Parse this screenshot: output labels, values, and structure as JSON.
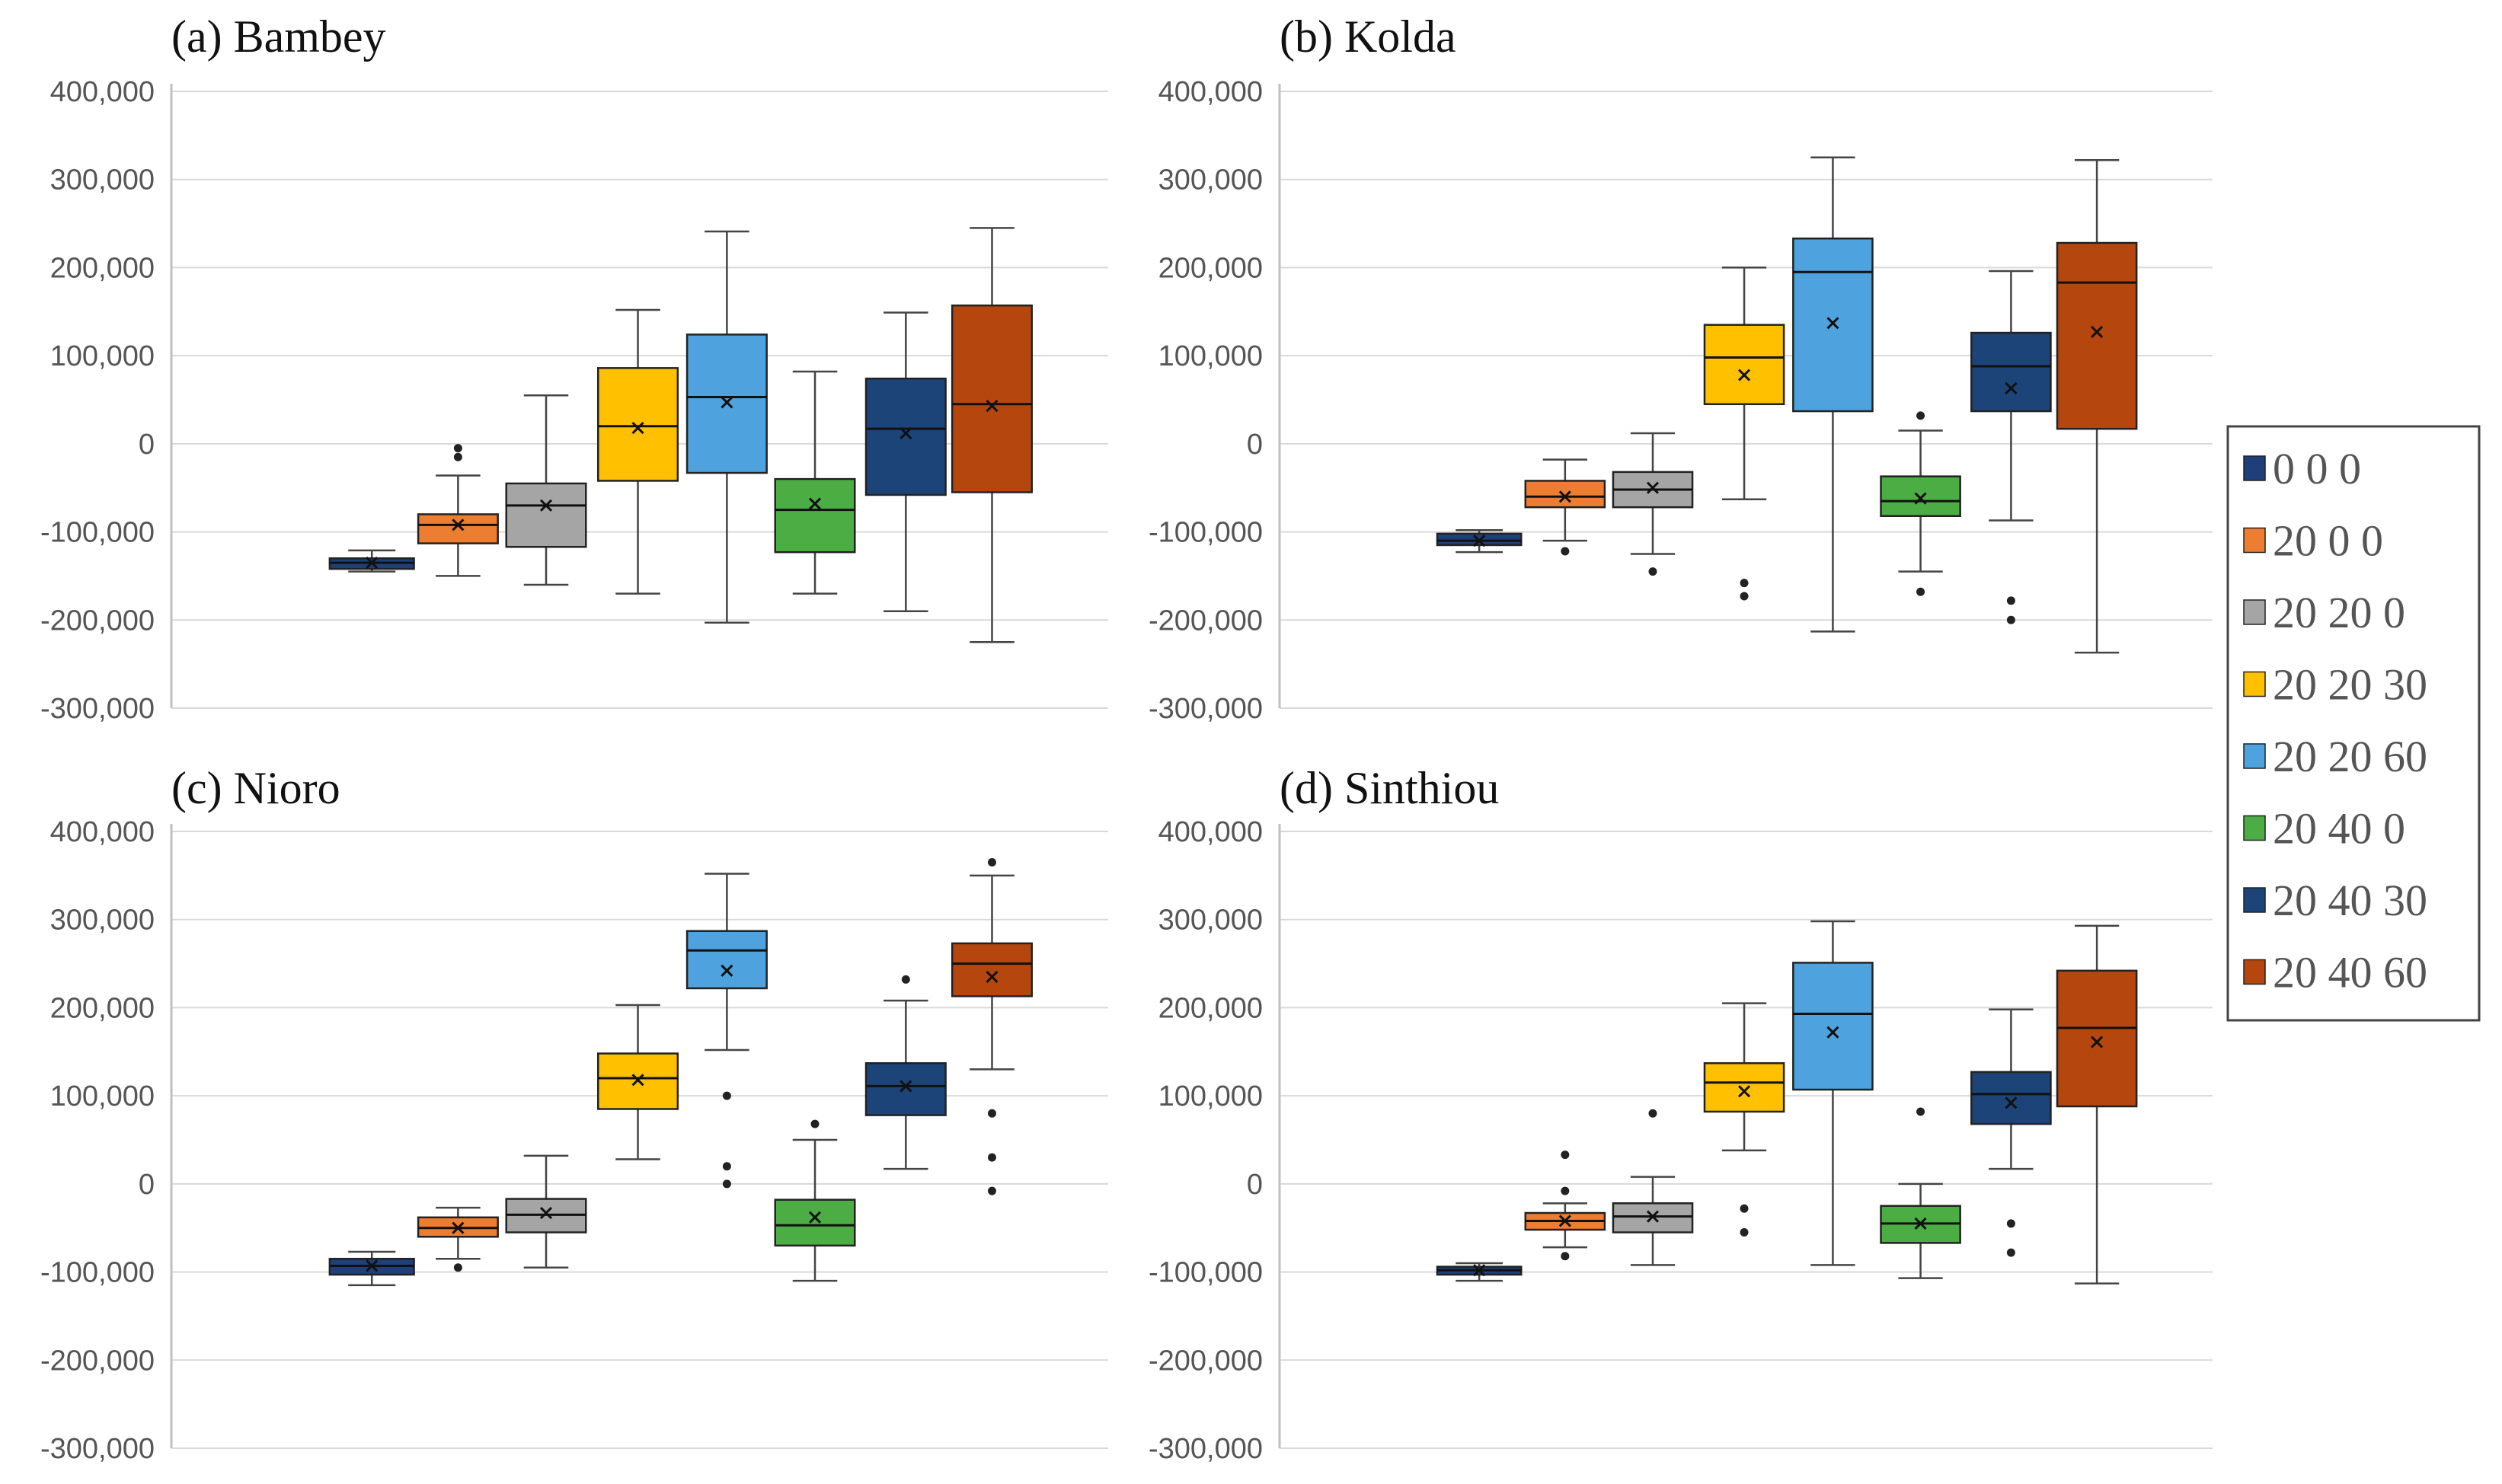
{
  "chart_data": {
    "type": "box",
    "y_tick_labels": [
      "400,000",
      "300,000",
      "200,000",
      "100,000",
      "0",
      "-100,000",
      "-200,000",
      "-300,000"
    ],
    "ylim": [
      -300000,
      400000
    ],
    "grid": true,
    "legend_position": "right",
    "legend": [
      {
        "label": "0 0 0",
        "color": "#1f3f7a"
      },
      {
        "label": "20 0 0",
        "color": "#ed7d31"
      },
      {
        "label": "20 20 0",
        "color": "#a5a5a5"
      },
      {
        "label": "20 20 30",
        "color": "#ffc000"
      },
      {
        "label": "20 20 60",
        "color": "#4ea3df"
      },
      {
        "label": "20 40 0",
        "color": "#4cad45"
      },
      {
        "label": "20 40 30",
        "color": "#1c4478"
      },
      {
        "label": "20 40 60",
        "color": "#b5470e"
      }
    ],
    "panels": [
      {
        "title": "(a) Bambey",
        "boxes": [
          {
            "min": -145000,
            "q1": -142000,
            "median": -135000,
            "q3": -130000,
            "max": -121000,
            "mean": -135000,
            "outliers": []
          },
          {
            "min": -150000,
            "q1": -113000,
            "median": -92000,
            "q3": -80000,
            "max": -36000,
            "mean": -92000,
            "outliers": [
              -5000,
              -15000
            ]
          },
          {
            "min": -160000,
            "q1": -117000,
            "median": -70000,
            "q3": -45000,
            "max": 55000,
            "mean": -70000,
            "outliers": []
          },
          {
            "min": -170000,
            "q1": -42000,
            "median": 20000,
            "q3": 86000,
            "max": 152000,
            "mean": 18000,
            "outliers": []
          },
          {
            "min": -203000,
            "q1": -33000,
            "median": 53000,
            "q3": 124000,
            "max": 241000,
            "mean": 47000,
            "outliers": []
          },
          {
            "min": -170000,
            "q1": -123000,
            "median": -75000,
            "q3": -40000,
            "max": 82000,
            "mean": -68000,
            "outliers": []
          },
          {
            "min": -190000,
            "q1": -58000,
            "median": 17000,
            "q3": 74000,
            "max": 149000,
            "mean": 12000,
            "outliers": []
          },
          {
            "min": -225000,
            "q1": -55000,
            "median": 45000,
            "q3": 157000,
            "max": 245000,
            "mean": 43000,
            "outliers": []
          }
        ]
      },
      {
        "title": "(b) Kolda",
        "boxes": [
          {
            "min": -123000,
            "q1": -115000,
            "median": -110000,
            "q3": -102000,
            "max": -98000,
            "mean": -110000,
            "outliers": []
          },
          {
            "min": -110000,
            "q1": -72000,
            "median": -60000,
            "q3": -42000,
            "max": -18000,
            "mean": -60000,
            "outliers": [
              -122000
            ]
          },
          {
            "min": -125000,
            "q1": -72000,
            "median": -52000,
            "q3": -32000,
            "max": 12000,
            "mean": -50000,
            "outliers": [
              -145000
            ]
          },
          {
            "min": -63000,
            "q1": 45000,
            "median": 98000,
            "q3": 135000,
            "max": 200000,
            "mean": 78000,
            "outliers": [
              -158000,
              -173000
            ]
          },
          {
            "min": -213000,
            "q1": 37000,
            "median": 195000,
            "q3": 233000,
            "max": 325000,
            "mean": 137000,
            "outliers": []
          },
          {
            "min": -145000,
            "q1": -82000,
            "median": -65000,
            "q3": -37000,
            "max": 15000,
            "mean": -62000,
            "outliers": [
              32000,
              -168000
            ]
          },
          {
            "min": -87000,
            "q1": 37000,
            "median": 88000,
            "q3": 126000,
            "max": 196000,
            "mean": 63000,
            "outliers": [
              -178000,
              -200000
            ]
          },
          {
            "min": -237000,
            "q1": 17000,
            "median": 183000,
            "q3": 228000,
            "max": 322000,
            "mean": 127000,
            "outliers": []
          }
        ]
      },
      {
        "title": "(c) Nioro",
        "boxes": [
          {
            "min": -115000,
            "q1": -103000,
            "median": -93000,
            "q3": -85000,
            "max": -77000,
            "mean": -93000,
            "outliers": []
          },
          {
            "min": -85000,
            "q1": -60000,
            "median": -50000,
            "q3": -38000,
            "max": -27000,
            "mean": -50000,
            "outliers": [
              -95000
            ]
          },
          {
            "min": -95000,
            "q1": -55000,
            "median": -35000,
            "q3": -17000,
            "max": 32000,
            "mean": -33000,
            "outliers": []
          },
          {
            "min": 28000,
            "q1": 85000,
            "median": 120000,
            "q3": 148000,
            "max": 203000,
            "mean": 118000,
            "outliers": []
          },
          {
            "min": 152000,
            "q1": 222000,
            "median": 265000,
            "q3": 287000,
            "max": 352000,
            "mean": 242000,
            "outliers": [
              100000,
              20000,
              0
            ]
          },
          {
            "min": -110000,
            "q1": -70000,
            "median": -47000,
            "q3": -18000,
            "max": 50000,
            "mean": -38000,
            "outliers": [
              68000
            ]
          },
          {
            "min": 17000,
            "q1": 78000,
            "median": 111000,
            "q3": 137000,
            "max": 208000,
            "mean": 111000,
            "outliers": [
              232000
            ]
          },
          {
            "min": 130000,
            "q1": 213000,
            "median": 250000,
            "q3": 273000,
            "max": 350000,
            "mean": 235000,
            "outliers": [
              365000,
              80000,
              30000,
              -8000
            ]
          }
        ]
      },
      {
        "title": "(d) Sinthiou",
        "boxes": [
          {
            "min": -110000,
            "q1": -103000,
            "median": -98000,
            "q3": -94000,
            "max": -90000,
            "mean": -98000,
            "outliers": []
          },
          {
            "min": -72000,
            "q1": -52000,
            "median": -42000,
            "q3": -33000,
            "max": -22000,
            "mean": -42000,
            "outliers": [
              33000,
              -8000,
              -82000
            ]
          },
          {
            "min": -92000,
            "q1": -55000,
            "median": -37000,
            "q3": -22000,
            "max": 8000,
            "mean": -37000,
            "outliers": [
              80000
            ]
          },
          {
            "min": 38000,
            "q1": 82000,
            "median": 115000,
            "q3": 137000,
            "max": 205000,
            "mean": 105000,
            "outliers": [
              -28000,
              -55000
            ]
          },
          {
            "min": -92000,
            "q1": 107000,
            "median": 193000,
            "q3": 251000,
            "max": 298000,
            "mean": 172000,
            "outliers": []
          },
          {
            "min": -107000,
            "q1": -67000,
            "median": -45000,
            "q3": -25000,
            "max": 0,
            "mean": -45000,
            "outliers": [
              82000
            ]
          },
          {
            "min": 17000,
            "q1": 68000,
            "median": 102000,
            "q3": 127000,
            "max": 198000,
            "mean": 92000,
            "outliers": [
              -45000,
              -78000
            ]
          },
          {
            "min": -113000,
            "q1": 88000,
            "median": 177000,
            "q3": 242000,
            "max": 293000,
            "mean": 161000,
            "outliers": []
          }
        ]
      }
    ]
  }
}
